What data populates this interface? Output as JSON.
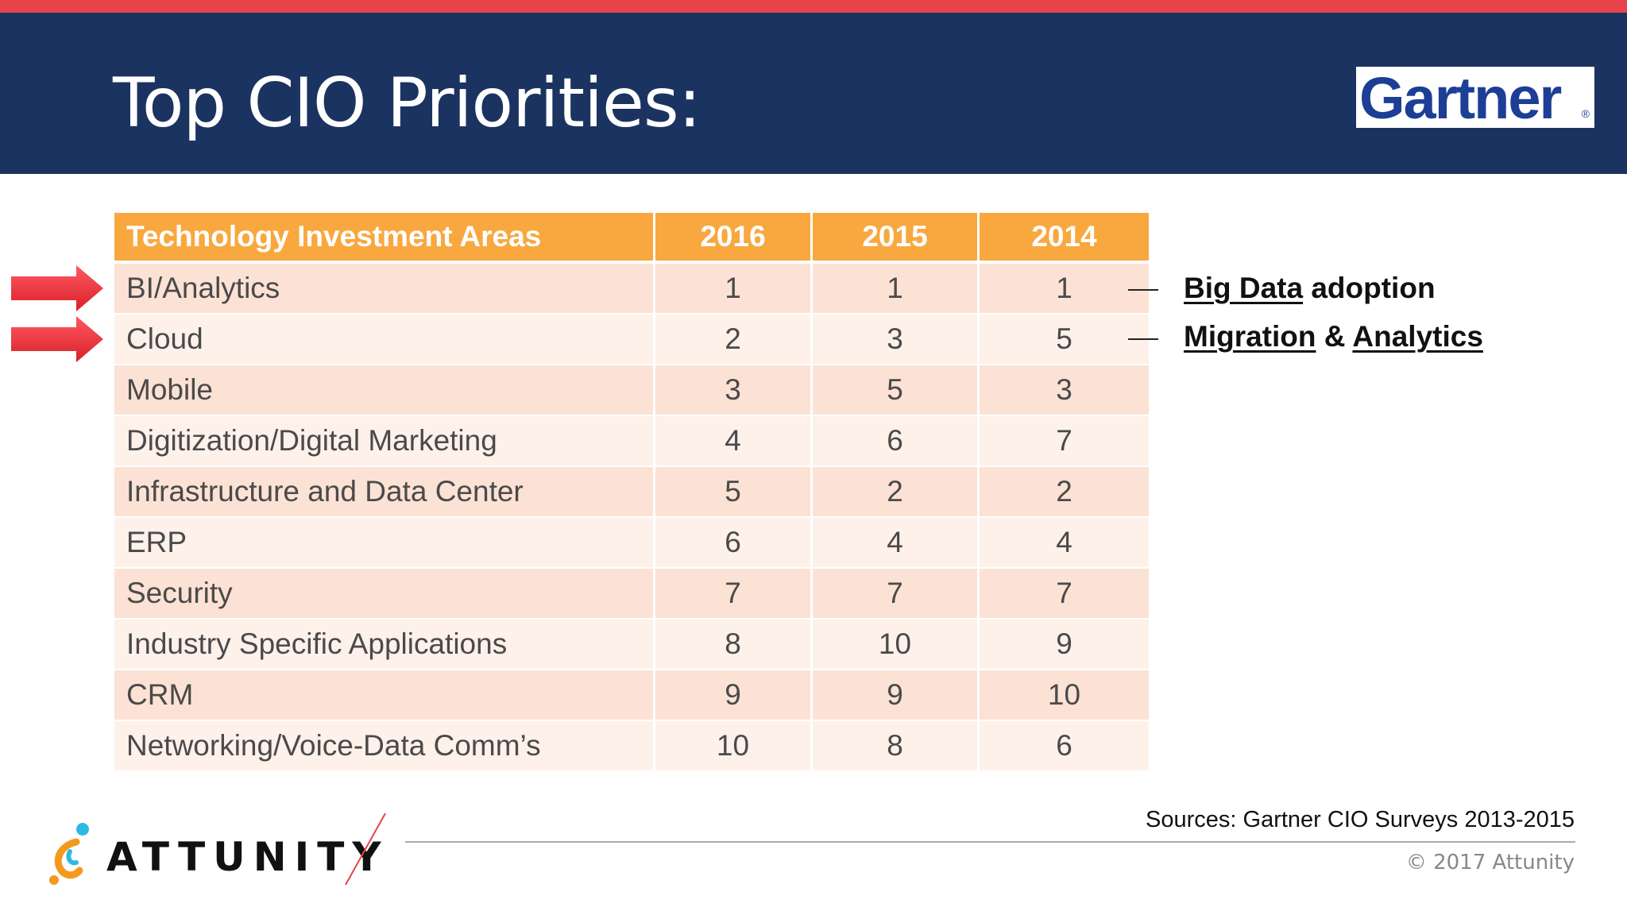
{
  "slide": {
    "title": "Top CIO Priorities:",
    "logo_text": "Gartner",
    "logo_reg": "®"
  },
  "table": {
    "headers": [
      "Technology Investment Areas",
      "2016",
      "2015",
      "2014"
    ],
    "rows": [
      [
        "BI/Analytics",
        "1",
        "1",
        "1"
      ],
      [
        "Cloud",
        "2",
        "3",
        "5"
      ],
      [
        "Mobile",
        "3",
        "5",
        "3"
      ],
      [
        "Digitization/Digital Marketing",
        "4",
        "6",
        "7"
      ],
      [
        "Infrastructure and Data Center",
        "5",
        "2",
        "2"
      ],
      [
        "ERP",
        "6",
        "4",
        "4"
      ],
      [
        "Security",
        "7",
        "7",
        "7"
      ],
      [
        "Industry Specific Applications",
        "8",
        "10",
        "9"
      ],
      [
        "CRM",
        "9",
        "9",
        "10"
      ],
      [
        "Networking/Voice-Data Comm’s",
        "10",
        "8",
        "6"
      ]
    ],
    "highlighted_rows": [
      "BI/Analytics",
      "Cloud"
    ]
  },
  "annotations": {
    "bi": {
      "underlined": "Big Data",
      "rest": " adoption"
    },
    "cloud": {
      "first": "Migration",
      "amp": " & ",
      "second": "Analytics"
    }
  },
  "footer": {
    "company": "ATTUNITY",
    "sources": "Sources: Gartner CIO Surveys 2013-2015",
    "copyright": "© 2017 Attunity"
  },
  "colors": {
    "header_bg": "#1b3360",
    "top_stripe": "#e8424b",
    "table_header": "#f8a83f",
    "row_odd": "#fbe2d4",
    "row_even": "#fdf1ea",
    "arrow": "#e8303a",
    "gartner_blue": "#1c3f95"
  }
}
